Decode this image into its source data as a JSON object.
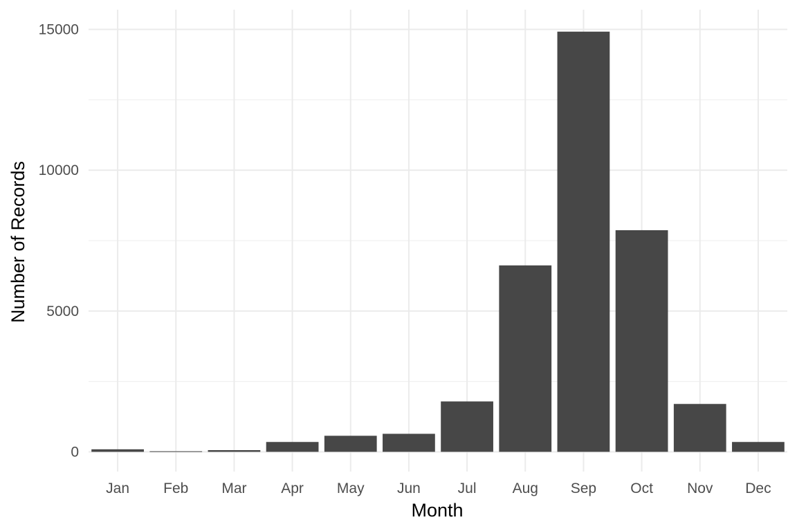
{
  "chart_data": {
    "type": "bar",
    "title": "",
    "xlabel": "Month",
    "ylabel": "Number of Records",
    "categories": [
      "Jan",
      "Feb",
      "Mar",
      "Apr",
      "May",
      "Jun",
      "Jul",
      "Aug",
      "Sep",
      "Oct",
      "Nov",
      "Dec"
    ],
    "values": [
      90,
      20,
      60,
      350,
      570,
      640,
      1790,
      6620,
      14920,
      7870,
      1700,
      350
    ],
    "ylim": [
      -700,
      15700
    ],
    "yticks": [
      0,
      5000,
      10000,
      15000
    ],
    "ytick_labels": [
      "0",
      "5000",
      "10000",
      "15000"
    ],
    "y_minor_ticks": [
      2500,
      7500,
      12500
    ],
    "grid": true,
    "legend": "none",
    "bar_color": "#474747",
    "background": "#ffffff"
  }
}
